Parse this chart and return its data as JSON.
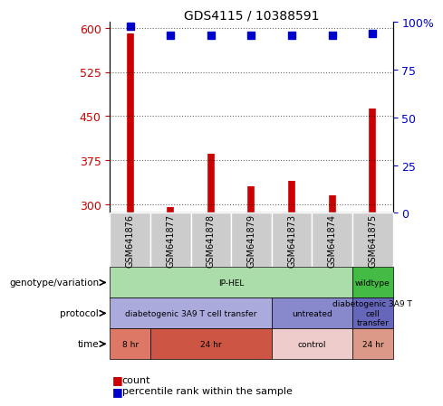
{
  "title": "GDS4115 / 10388591",
  "samples": [
    "GSM641876",
    "GSM641877",
    "GSM641878",
    "GSM641879",
    "GSM641873",
    "GSM641874",
    "GSM641875"
  ],
  "counts": [
    590,
    295,
    385,
    330,
    340,
    315,
    462
  ],
  "percentiles": [
    98,
    93,
    93,
    93,
    93,
    93,
    94
  ],
  "ylim_left": [
    285,
    610
  ],
  "ylim_right": [
    0,
    100
  ],
  "yticks_left": [
    300,
    375,
    450,
    525,
    600
  ],
  "yticks_right": [
    0,
    25,
    50,
    75,
    100
  ],
  "bar_color": "#cc0000",
  "dot_color": "#0000cc",
  "bar_base": 285,
  "genotype_row": [
    {
      "label": "IP-HEL",
      "start": 0,
      "end": 6,
      "color": "#aaddaa"
    },
    {
      "label": "wildtype",
      "start": 6,
      "end": 7,
      "color": "#44bb44"
    }
  ],
  "protocol_row": [
    {
      "label": "diabetogenic 3A9 T cell transfer",
      "start": 0,
      "end": 4,
      "color": "#aaaadd"
    },
    {
      "label": "untreated",
      "start": 4,
      "end": 6,
      "color": "#8888cc"
    },
    {
      "label": "diabetogenic 3A9 T\ncell\ntransfer",
      "start": 6,
      "end": 7,
      "color": "#6666bb"
    }
  ],
  "time_row": [
    {
      "label": "8 hr",
      "start": 0,
      "end": 1,
      "color": "#dd7766"
    },
    {
      "label": "24 hr",
      "start": 1,
      "end": 4,
      "color": "#cc5544"
    },
    {
      "label": "control",
      "start": 4,
      "end": 6,
      "color": "#eecccc"
    },
    {
      "label": "24 hr",
      "start": 6,
      "end": 7,
      "color": "#dd9988"
    }
  ],
  "row_labels": [
    "genotype/variation",
    "protocol",
    "time"
  ],
  "legend_count_color": "#cc0000",
  "legend_dot_color": "#0000cc",
  "background_color": "#ffffff",
  "tick_label_color_left": "#cc0000",
  "tick_label_color_right": "#0000cc",
  "sample_box_color": "#cccccc"
}
